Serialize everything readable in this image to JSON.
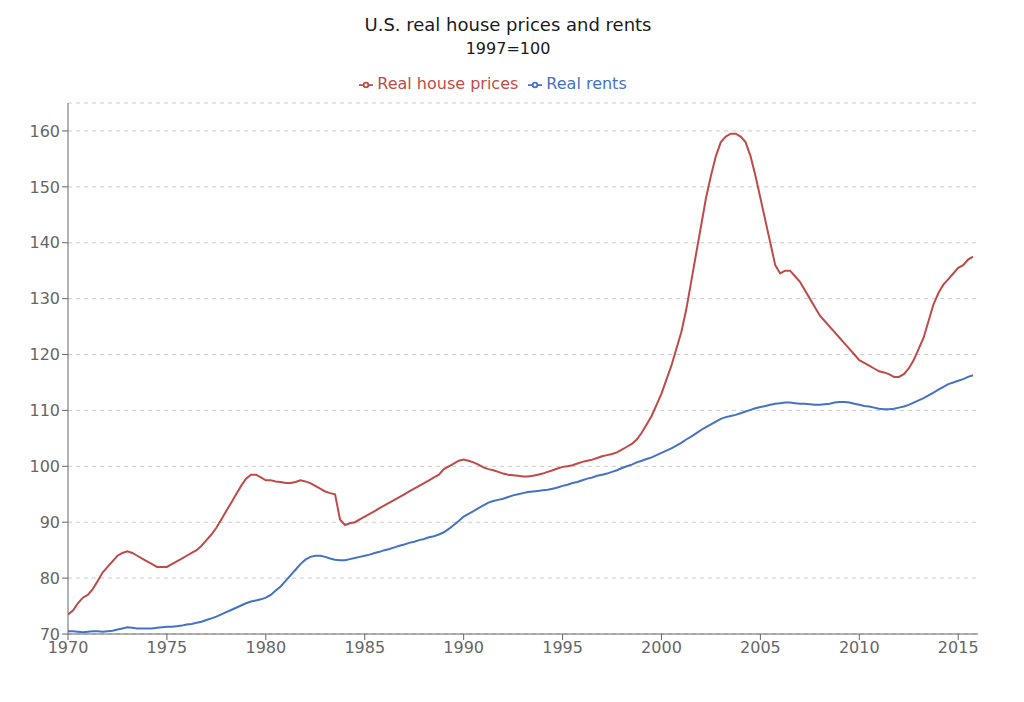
{
  "chart_data": {
    "type": "line",
    "title": "U.S. real house prices and rents",
    "subtitle": "1997=100",
    "x": [
      1970.0,
      1970.25,
      1970.5,
      1970.75,
      1971.0,
      1971.25,
      1971.5,
      1971.75,
      1972.0,
      1972.25,
      1972.5,
      1972.75,
      1973.0,
      1973.25,
      1973.5,
      1973.75,
      1974.0,
      1974.25,
      1974.5,
      1974.75,
      1975.0,
      1975.25,
      1975.5,
      1975.75,
      1976.0,
      1976.25,
      1976.5,
      1976.75,
      1977.0,
      1977.25,
      1977.5,
      1977.75,
      1978.0,
      1978.25,
      1978.5,
      1978.75,
      1979.0,
      1979.25,
      1979.5,
      1979.75,
      1980.0,
      1980.25,
      1980.5,
      1980.75,
      1981.0,
      1981.25,
      1981.5,
      1981.75,
      1982.0,
      1982.25,
      1982.5,
      1982.75,
      1983.0,
      1983.25,
      1983.5,
      1983.75,
      1984.0,
      1984.25,
      1984.5,
      1984.75,
      1985.0,
      1985.25,
      1985.5,
      1985.75,
      1986.0,
      1986.25,
      1986.5,
      1986.75,
      1987.0,
      1987.25,
      1987.5,
      1987.75,
      1988.0,
      1988.25,
      1988.5,
      1988.75,
      1989.0,
      1989.25,
      1989.5,
      1989.75,
      1990.0,
      1990.25,
      1990.5,
      1990.75,
      1991.0,
      1991.25,
      1991.5,
      1991.75,
      1992.0,
      1992.25,
      1992.5,
      1992.75,
      1993.0,
      1993.25,
      1993.5,
      1993.75,
      1994.0,
      1994.25,
      1994.5,
      1994.75,
      1995.0,
      1995.25,
      1995.5,
      1995.75,
      1996.0,
      1996.25,
      1996.5,
      1996.75,
      1997.0,
      1997.25,
      1997.5,
      1997.75,
      1998.0,
      1998.25,
      1998.5,
      1998.75,
      1999.0,
      1999.25,
      1999.5,
      1999.75,
      2000.0,
      2000.25,
      2000.5,
      2000.75,
      2001.0,
      2001.25,
      2001.5,
      2001.75,
      2002.0,
      2002.25,
      2002.5,
      2002.75,
      2003.0,
      2003.25,
      2003.5,
      2003.75,
      2004.0,
      2004.25,
      2004.5,
      2004.75,
      2005.0,
      2005.25,
      2005.5,
      2005.75,
      2006.0,
      2006.25,
      2006.5,
      2006.75,
      2007.0,
      2007.25,
      2007.5,
      2007.75,
      2008.0,
      2008.25,
      2008.5,
      2008.75,
      2009.0,
      2009.25,
      2009.5,
      2009.75,
      2010.0,
      2010.25,
      2010.5,
      2010.75,
      2011.0,
      2011.25,
      2011.5,
      2011.75,
      2012.0,
      2012.25,
      2012.5,
      2012.75,
      2013.0,
      2013.25,
      2013.5,
      2013.75,
      2014.0,
      2014.25,
      2014.5,
      2014.75,
      2015.0,
      2015.25,
      2015.5,
      2015.75
    ],
    "series": [
      {
        "name": "Real rents",
        "color": "#4472C4",
        "values": [
          70.5,
          70.5,
          70.4,
          70.3,
          70.4,
          70.5,
          70.5,
          70.4,
          70.5,
          70.6,
          70.8,
          71.0,
          71.2,
          71.1,
          71.0,
          71.0,
          71.0,
          71.0,
          71.1,
          71.2,
          71.3,
          71.3,
          71.4,
          71.5,
          71.7,
          71.8,
          72.0,
          72.2,
          72.5,
          72.8,
          73.1,
          73.5,
          73.9,
          74.3,
          74.7,
          75.1,
          75.5,
          75.8,
          76.0,
          76.2,
          76.5,
          77.0,
          77.8,
          78.5,
          79.5,
          80.5,
          81.5,
          82.5,
          83.3,
          83.8,
          84.0,
          84.0,
          83.8,
          83.5,
          83.3,
          83.2,
          83.2,
          83.4,
          83.6,
          83.8,
          84.0,
          84.2,
          84.5,
          84.7,
          85.0,
          85.2,
          85.5,
          85.8,
          86.0,
          86.3,
          86.5,
          86.8,
          87.0,
          87.3,
          87.5,
          87.8,
          88.2,
          88.8,
          89.5,
          90.2,
          91.0,
          91.5,
          92.0,
          92.5,
          93.0,
          93.5,
          93.8,
          94.0,
          94.2,
          94.5,
          94.8,
          95.0,
          95.2,
          95.4,
          95.5,
          95.6,
          95.7,
          95.8,
          96.0,
          96.2,
          96.5,
          96.7,
          97.0,
          97.2,
          97.5,
          97.8,
          98.0,
          98.3,
          98.5,
          98.7,
          99.0,
          99.3,
          99.7,
          100.0,
          100.3,
          100.7,
          101.0,
          101.3,
          101.6,
          102.0,
          102.4,
          102.8,
          103.2,
          103.7,
          104.2,
          104.8,
          105.3,
          105.9,
          106.5,
          107.0,
          107.5,
          108.0,
          108.5,
          108.8,
          109.0,
          109.2,
          109.5,
          109.8,
          110.1,
          110.4,
          110.6,
          110.8,
          111.0,
          111.2,
          111.3,
          111.4,
          111.4,
          111.3,
          111.2,
          111.2,
          111.1,
          111.0,
          111.0,
          111.1,
          111.2,
          111.4,
          111.5,
          111.5,
          111.4,
          111.2,
          111.0,
          110.8,
          110.7,
          110.5,
          110.3,
          110.2,
          110.2,
          110.3,
          110.5,
          110.7,
          111.0,
          111.4,
          111.8,
          112.2,
          112.7,
          113.2,
          113.7,
          114.2,
          114.7,
          115.0,
          115.3,
          115.6,
          116.0,
          116.3
        ]
      },
      {
        "name": "Real house prices",
        "color": "#BE4B48",
        "values": [
          73.5,
          74.2,
          75.5,
          76.5,
          77.0,
          78.0,
          79.5,
          81.0,
          82.0,
          83.0,
          84.0,
          84.5,
          84.8,
          84.5,
          84.0,
          83.5,
          83.0,
          82.5,
          82.0,
          82.0,
          82.0,
          82.5,
          83.0,
          83.5,
          84.0,
          84.5,
          85.0,
          85.8,
          86.8,
          87.8,
          89.0,
          90.5,
          92.0,
          93.5,
          95.0,
          96.5,
          97.8,
          98.5,
          98.5,
          98.0,
          97.5,
          97.5,
          97.3,
          97.2,
          97.0,
          97.0,
          97.2,
          97.5,
          97.3,
          97.0,
          96.5,
          96.0,
          95.5,
          95.2,
          95.0,
          90.5,
          89.5,
          89.8,
          90.0,
          90.5,
          91.0,
          91.5,
          92.0,
          92.5,
          93.0,
          93.5,
          94.0,
          94.5,
          95.0,
          95.5,
          96.0,
          96.5,
          97.0,
          97.5,
          98.0,
          98.5,
          99.5,
          100.0,
          100.5,
          101.0,
          101.2,
          101.0,
          100.7,
          100.3,
          99.8,
          99.5,
          99.3,
          99.0,
          98.7,
          98.5,
          98.4,
          98.3,
          98.2,
          98.2,
          98.3,
          98.5,
          98.7,
          99.0,
          99.3,
          99.6,
          99.9,
          100.0,
          100.2,
          100.5,
          100.8,
          101.0,
          101.2,
          101.5,
          101.8,
          102.0,
          102.2,
          102.5,
          103.0,
          103.5,
          104.0,
          104.8,
          106.0,
          107.5,
          109.0,
          111.0,
          113.0,
          115.5,
          118.0,
          121.0,
          124.0,
          128.0,
          133.0,
          138.0,
          143.0,
          148.0,
          152.0,
          155.5,
          158.0,
          159.0,
          159.5,
          159.5,
          159.0,
          158.0,
          155.5,
          152.0,
          148.0,
          144.0,
          140.0,
          136.0,
          134.5,
          135.0,
          135.0,
          134.0,
          133.0,
          131.5,
          130.0,
          128.5,
          127.0,
          126.0,
          125.0,
          124.0,
          123.0,
          122.0,
          121.0,
          120.0,
          119.0,
          118.5,
          118.0,
          117.5,
          117.0,
          116.8,
          116.5,
          116.0,
          116.0,
          116.5,
          117.5,
          119.0,
          121.0,
          123.0,
          126.0,
          129.0,
          131.0,
          132.5,
          133.5,
          134.5,
          135.5,
          136.0,
          137.0,
          137.5
        ]
      }
    ],
    "xlim": [
      1970,
      2016
    ],
    "ylim": [
      70,
      165
    ],
    "xticks": [
      1970,
      1975,
      1980,
      1985,
      1990,
      1995,
      2000,
      2005,
      2010,
      2015
    ],
    "yticks": [
      70,
      80,
      90,
      100,
      110,
      120,
      130,
      140,
      150,
      160
    ],
    "grid": true,
    "legend": "top"
  }
}
